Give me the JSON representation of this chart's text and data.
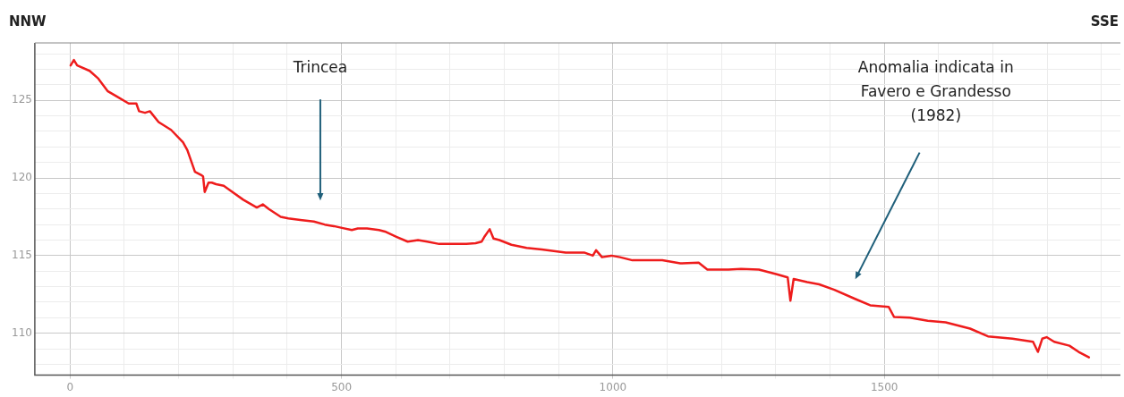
{
  "chart_data": {
    "type": "line",
    "x": [
      1,
      7,
      13,
      36,
      52,
      69,
      86,
      108,
      122,
      127,
      138,
      147,
      163,
      186,
      208,
      216,
      230,
      241,
      245,
      248,
      255,
      261,
      269,
      283,
      291,
      319,
      344,
      355,
      366,
      388,
      402,
      424,
      449,
      469,
      486,
      499,
      519,
      530,
      547,
      569,
      580,
      602,
      622,
      641,
      658,
      680,
      730,
      747,
      758,
      763,
      773,
      780,
      791,
      813,
      841,
      869,
      891,
      913,
      947,
      963,
      969,
      980,
      997,
      1013,
      1036,
      1058,
      1091,
      1124,
      1158,
      1174,
      1197,
      1213,
      1236,
      1269,
      1302,
      1322,
      1327,
      1333,
      1358,
      1380,
      1408,
      1447,
      1474,
      1508,
      1518,
      1547,
      1580,
      1613,
      1658,
      1691,
      1736,
      1774,
      1783,
      1791,
      1799,
      1813,
      1841,
      1858,
      1877
    ],
    "series": [
      {
        "color": "#ee1c1c",
        "values": [
          127.25,
          127.6,
          127.25,
          126.9,
          126.4,
          125.6,
          125.25,
          124.8,
          124.8,
          124.3,
          124.2,
          124.3,
          123.6,
          123.1,
          122.3,
          121.8,
          120.4,
          120.2,
          120.1,
          119.1,
          119.7,
          119.7,
          119.6,
          119.5,
          119.3,
          118.6,
          118.1,
          118.3,
          118.0,
          117.5,
          117.4,
          117.3,
          117.2,
          117.0,
          116.9,
          116.8,
          116.65,
          116.75,
          116.75,
          116.65,
          116.55,
          116.2,
          115.9,
          116.0,
          115.9,
          115.75,
          115.75,
          115.8,
          115.9,
          116.2,
          116.7,
          116.1,
          116.0,
          115.7,
          115.5,
          115.4,
          115.3,
          115.2,
          115.2,
          115.0,
          115.35,
          114.9,
          115.0,
          114.9,
          114.7,
          114.7,
          114.7,
          114.5,
          114.55,
          114.1,
          114.1,
          114.1,
          114.15,
          114.1,
          113.8,
          113.6,
          112.1,
          113.5,
          113.3,
          113.15,
          112.8,
          112.2,
          111.8,
          111.7,
          111.05,
          111.0,
          110.8,
          110.7,
          110.3,
          109.8,
          109.65,
          109.45,
          108.8,
          109.65,
          109.75,
          109.45,
          109.2,
          108.8,
          108.45
        ]
      }
    ],
    "xlim": [
      -65,
      1935
    ],
    "xticks": [
      0,
      {
        "value": 100,
        "label": null
      },
      {
        "value": 200,
        "label": null
      },
      {
        "value": 300,
        "label": null
      },
      {
        "value": 400,
        "label": null
      },
      500,
      {
        "value": 600,
        "label": null
      },
      {
        "value": 700,
        "label": null
      },
      {
        "value": 800,
        "label": null
      },
      {
        "value": 900,
        "label": null
      },
      1000,
      {
        "value": 1100,
        "label": null
      },
      {
        "value": 1200,
        "label": null
      },
      {
        "value": 1300,
        "label": null
      },
      {
        "value": 1400,
        "label": null
      },
      1500,
      {
        "value": 1600,
        "label": null
      },
      {
        "value": 1700,
        "label": null
      },
      {
        "value": 1800,
        "label": null
      },
      {
        "value": 1900,
        "label": null
      }
    ],
    "ylim": [
      107.3,
      128.7
    ],
    "yticks": [
      {
        "value": 108,
        "label": null
      },
      {
        "value": 109,
        "label": null
      },
      110,
      {
        "value": 111,
        "label": null
      },
      {
        "value": 112,
        "label": null
      },
      {
        "value": 113,
        "label": null
      },
      {
        "value": 114,
        "label": null
      },
      115,
      {
        "value": 116,
        "label": null
      },
      {
        "value": 117,
        "label": null
      },
      {
        "value": 118,
        "label": null
      },
      {
        "value": 119,
        "label": null
      },
      120,
      {
        "value": 121,
        "label": null
      },
      {
        "value": 122,
        "label": null
      },
      {
        "value": 123,
        "label": null
      },
      {
        "value": 124,
        "label": null
      },
      125,
      {
        "value": 126,
        "label": null
      },
      {
        "value": 127,
        "label": null
      },
      {
        "value": 128,
        "label": null
      }
    ],
    "grid": true,
    "marker": "none",
    "line_style": "solid",
    "legend": false,
    "annotations": [
      "NNW",
      "SSE",
      "Trincea",
      "Anomalia indicata in\nFavero e Grandesso\n(1982)"
    ]
  }
}
